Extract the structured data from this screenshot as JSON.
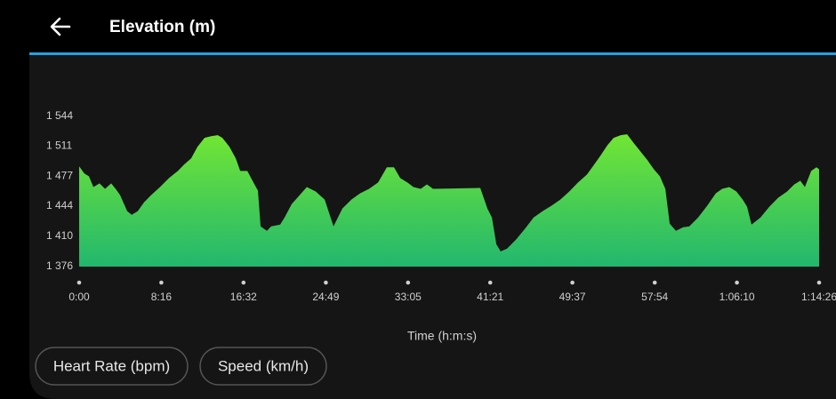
{
  "header": {
    "title": "Elevation (m)"
  },
  "chart_data": {
    "type": "area",
    "x_label": "Time (h:m:s)",
    "x": [
      0,
      32,
      59,
      86,
      123,
      156,
      193,
      220,
      247,
      290,
      317,
      354,
      392,
      435,
      488,
      542,
      596,
      633,
      676,
      714,
      757,
      800,
      837,
      864,
      907,
      945,
      972,
      1015,
      1052,
      1079,
      1095,
      1133,
      1159,
      1213,
      1240,
      1283,
      1331,
      1374,
      1428,
      1482,
      1535,
      1589,
      1643,
      1696,
      1750,
      1804,
      1857,
      1900,
      1938,
      1981,
      2018,
      2061,
      2099,
      2136,
      2421,
      2464,
      2491,
      2518,
      2544,
      2582,
      2636,
      2689,
      2743,
      2797,
      2850,
      2904,
      2958,
      3011,
      3065,
      3108,
      3146,
      3189,
      3226,
      3269,
      3307,
      3344,
      3387,
      3430,
      3468,
      3505,
      3538,
      3564,
      3602,
      3645,
      3683,
      3736,
      3790,
      3843,
      3881,
      3924,
      3967,
      4005,
      4031,
      4058,
      4112,
      4166,
      4219,
      4273,
      4316,
      4353,
      4380,
      4418,
      4450,
      4466
    ],
    "values": [
      1488,
      1480,
      1477,
      1465,
      1469,
      1463,
      1469,
      1463,
      1456,
      1438,
      1434,
      1438,
      1448,
      1456,
      1465,
      1475,
      1483,
      1490,
      1497,
      1510,
      1520,
      1522,
      1523,
      1520,
      1510,
      1497,
      1483,
      1483,
      1470,
      1461,
      1421,
      1416,
      1421,
      1423,
      1431,
      1446,
      1456,
      1465,
      1460,
      1451,
      1421,
      1441,
      1451,
      1458,
      1463,
      1470,
      1487,
      1487,
      1475,
      1470,
      1465,
      1463,
      1468,
      1463,
      1464,
      1441,
      1431,
      1401,
      1393,
      1396,
      1406,
      1418,
      1431,
      1438,
      1444,
      1451,
      1460,
      1470,
      1479,
      1490,
      1500,
      1512,
      1520,
      1523,
      1524,
      1515,
      1505,
      1495,
      1485,
      1477,
      1463,
      1424,
      1416,
      1420,
      1421,
      1431,
      1444,
      1458,
      1463,
      1465,
      1460,
      1451,
      1443,
      1423,
      1431,
      1443,
      1453,
      1460,
      1468,
      1472,
      1465,
      1483,
      1487,
      1485
    ],
    "gradient": [
      "#72e634",
      "#22b76e"
    ],
    "xlim": [
      0,
      4466
    ],
    "ylim": [
      1376,
      1544
    ],
    "xticks": [
      {
        "value": 0,
        "label": "0:00"
      },
      {
        "value": 496,
        "label": "8:16"
      },
      {
        "value": 992,
        "label": "16:32"
      },
      {
        "value": 1489,
        "label": "24:49"
      },
      {
        "value": 1985,
        "label": "33:05"
      },
      {
        "value": 2481,
        "label": "41:21"
      },
      {
        "value": 2977,
        "label": "49:37"
      },
      {
        "value": 3474,
        "label": "57:54"
      },
      {
        "value": 3970,
        "label": "1:06:10"
      },
      {
        "value": 4466,
        "label": "1:14:26"
      }
    ],
    "yticks": [
      {
        "value": 1376,
        "label": "1 376"
      },
      {
        "value": 1410,
        "label": "1 410"
      },
      {
        "value": 1444,
        "label": "1 444"
      },
      {
        "value": 1477,
        "label": "1 477"
      },
      {
        "value": 1511,
        "label": "1 511"
      },
      {
        "value": 1544,
        "label": "1 544"
      }
    ]
  },
  "buttons": [
    "Heart Rate (bpm)",
    "Speed (km/h)"
  ]
}
